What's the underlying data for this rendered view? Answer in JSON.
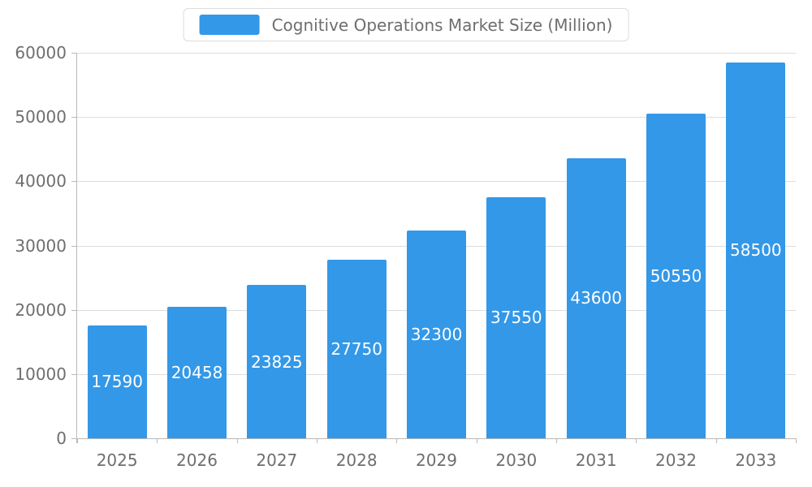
{
  "chart_data": {
    "type": "bar",
    "title": "Cognitive Operations Market Size (Million)",
    "categories": [
      "2025",
      "2026",
      "2027",
      "2028",
      "2029",
      "2030",
      "2031",
      "2032",
      "2033"
    ],
    "values": [
      17590,
      20458,
      23825,
      27750,
      32300,
      37550,
      43600,
      50550,
      58500
    ],
    "xlabel": "",
    "ylabel": "",
    "ylim": [
      0,
      60000
    ],
    "ytick_step": 10000,
    "ytick_labels": [
      "0",
      "10000",
      "20000",
      "30000",
      "40000",
      "50000",
      "60000"
    ],
    "grid": true,
    "legend_position": "top",
    "bar_color": "#3398e8",
    "bar_value_label_color": "#ffffff",
    "axis_text_color": "#6e6e6e",
    "grid_color": "#dddddd",
    "axis_line_color": "#b9b9b9"
  }
}
